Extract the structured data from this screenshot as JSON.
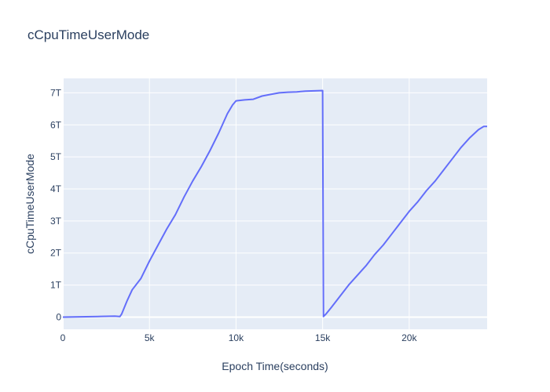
{
  "chart_data": {
    "type": "line",
    "title": "cCpuTimeUserMode",
    "xlabel": "Epoch Time(seconds)",
    "ylabel": "cCpuTimeUserMode",
    "xlim": [
      0,
      24500
    ],
    "ylim": [
      -0.38,
      7.45
    ],
    "y_unit": "T (trillions)",
    "x_ticks": [
      {
        "value": 0,
        "label": "0"
      },
      {
        "value": 5000,
        "label": "5k"
      },
      {
        "value": 10000,
        "label": "10k"
      },
      {
        "value": 15000,
        "label": "15k"
      },
      {
        "value": 20000,
        "label": "20k"
      }
    ],
    "y_ticks": [
      {
        "value": 0,
        "label": "0"
      },
      {
        "value": 1,
        "label": "1T"
      },
      {
        "value": 2,
        "label": "2T"
      },
      {
        "value": 3,
        "label": "3T"
      },
      {
        "value": 4,
        "label": "4T"
      },
      {
        "value": 5,
        "label": "5T"
      },
      {
        "value": 6,
        "label": "6T"
      },
      {
        "value": 7,
        "label": "7T"
      }
    ],
    "grid": true,
    "colors": {
      "line": "#636efa",
      "plot_bg": "#e5ecf6",
      "grid": "#ffffff",
      "text": "#2a3f5f"
    },
    "series": [
      {
        "x": [
          0,
          1000,
          2000,
          3000,
          3300,
          3400,
          3700,
          4000,
          4500,
          5000,
          5500,
          6000,
          6500,
          7000,
          7500,
          8000,
          8500,
          9000,
          9500,
          9800,
          10000,
          10500,
          11000,
          11500,
          12000,
          12500,
          13000,
          13500,
          14000,
          14500,
          15000,
          15050,
          15200,
          15500,
          16000,
          16500,
          17000,
          17500,
          18000,
          18500,
          19000,
          19500,
          20000,
          20500,
          21000,
          21500,
          22000,
          22500,
          23000,
          23500,
          24000,
          24300,
          24500
        ],
        "y": [
          0,
          0.01,
          0.02,
          0.03,
          0.02,
          0.1,
          0.5,
          0.85,
          1.2,
          1.75,
          2.25,
          2.75,
          3.2,
          3.75,
          4.25,
          4.7,
          5.2,
          5.75,
          6.35,
          6.62,
          6.75,
          6.78,
          6.8,
          6.9,
          6.95,
          7.0,
          7.02,
          7.03,
          7.05,
          7.06,
          7.07,
          0.02,
          0.1,
          0.3,
          0.65,
          1.0,
          1.3,
          1.6,
          1.95,
          2.25,
          2.6,
          2.95,
          3.3,
          3.6,
          3.95,
          4.25,
          4.6,
          4.95,
          5.3,
          5.6,
          5.85,
          5.95,
          5.95
        ]
      }
    ]
  }
}
